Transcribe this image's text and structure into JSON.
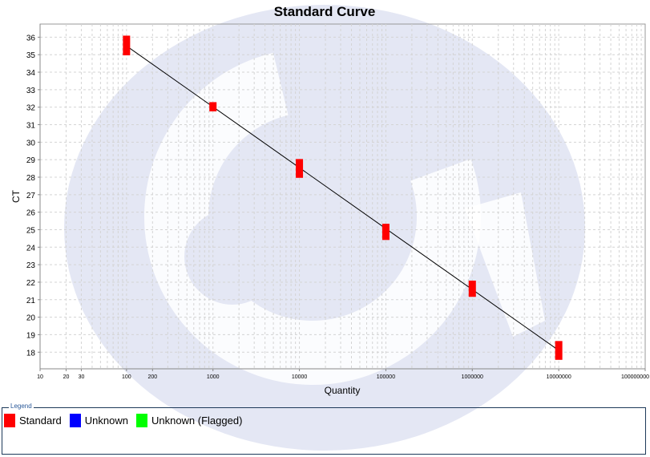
{
  "chart_data": {
    "type": "scatter",
    "title": "Standard Curve",
    "xlabel": "Quantity",
    "ylabel": "CT",
    "xscale": "log",
    "xlim": [
      10,
      100000000
    ],
    "ylim": [
      17.05,
      36.75
    ],
    "grid": true,
    "x_ticks": [
      "10",
      "20",
      "30",
      "100",
      "200",
      "1000",
      "10000",
      "100000",
      "1000000",
      "10000000",
      "100000000"
    ],
    "y_ticks": [
      18,
      19,
      20,
      21,
      22,
      23,
      24,
      25,
      26,
      27,
      28,
      29,
      30,
      31,
      32,
      33,
      34,
      35,
      36
    ],
    "series": [
      {
        "name": "Standard",
        "color": "#ff0000",
        "points": [
          {
            "x": 100,
            "y_min": 35.1,
            "y_max": 35.95
          },
          {
            "x": 1000,
            "y_min": 31.9,
            "y_max": 32.15
          },
          {
            "x": 10000,
            "y_min": 28.1,
            "y_max": 28.9
          },
          {
            "x": 100000,
            "y_min": 24.55,
            "y_max": 25.2
          },
          {
            "x": 1000000,
            "y_min": 21.3,
            "y_max": 21.95
          },
          {
            "x": 10000000,
            "y_min": 17.7,
            "y_max": 18.5
          }
        ]
      }
    ],
    "fit_line": {
      "color": "#000000",
      "x": [
        100,
        10000000
      ],
      "y": [
        35.5,
        18.1
      ]
    },
    "legend_placement": "bottom"
  },
  "legend": {
    "title": "Legend",
    "items": [
      {
        "label": "Standard",
        "color": "#ff0000"
      },
      {
        "label": "Unknown",
        "color": "#0000ff"
      },
      {
        "label": "Unknown (Flagged)",
        "color": "#00ff00"
      }
    ]
  }
}
